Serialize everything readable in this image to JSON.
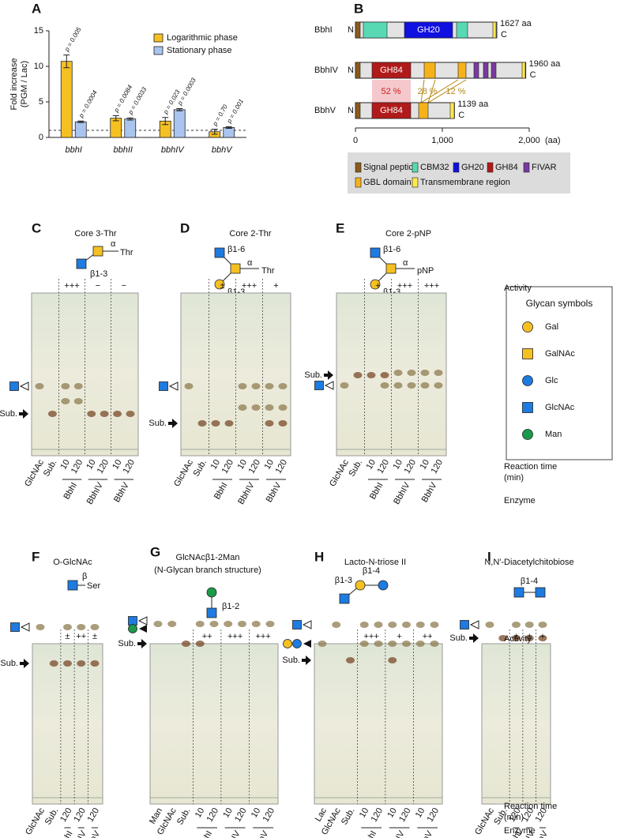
{
  "chart_data": {
    "type": "bar",
    "label": "A",
    "y_label": [
      "Fold increase",
      "(PGM / Lac)"
    ],
    "categories": [
      "bbhI",
      "bbhII",
      "bbhIV",
      "bbhV"
    ],
    "series": [
      {
        "name": "Logarithmic phase",
        "color": "#f5c022",
        "values": [
          10.7,
          2.7,
          2.3,
          0.8
        ],
        "errors": [
          0.9,
          0.35,
          0.5,
          0.35
        ],
        "p_values": [
          "p = 0.005",
          "p = 0.0084",
          "p = 0.023",
          "p = 0.70"
        ]
      },
      {
        "name": "Stationary phase",
        "color": "#a9c4ee",
        "values": [
          2.2,
          2.6,
          3.9,
          1.4
        ],
        "errors": [
          0.1,
          0.15,
          0.15,
          0.12
        ],
        "p_values": [
          "p = 0.0004",
          "p = 0.0033",
          "p = 0.0003",
          "p = 0.001"
        ]
      }
    ],
    "ylim": [
      0,
      15
    ],
    "yticks": [
      0,
      5,
      10,
      15
    ],
    "reference_line": 1
  },
  "domain_figure": {
    "label": "B",
    "n_term": "N",
    "c_term": "C",
    "proteins": [
      {
        "name": "BbhI",
        "length": 1627,
        "length_label": "1627 aa",
        "domain_labels": [
          "GH20"
        ]
      },
      {
        "name": "BbhIV",
        "length": 1960,
        "length_label": "1960 aa",
        "domain_labels": [
          "GH84"
        ]
      },
      {
        "name": "BbhV",
        "length": 1139,
        "length_label": "1139 aa",
        "domain_labels": [
          "GH84"
        ]
      }
    ],
    "identities": [
      "52 %",
      "28 %",
      "12 %"
    ],
    "scale": {
      "lim": [
        0,
        2000
      ],
      "ticks": [
        0,
        {
          "value": 1000,
          "label": "1,000"
        },
        {
          "value": 2000,
          "label": "2,000"
        }
      ],
      "unit": "(aa)"
    },
    "legend": [
      "Signal peptide",
      "CBM32",
      "GH20",
      "GH84",
      "FIVAR",
      "GBL domain",
      "Transmembrane region"
    ]
  },
  "tlc_panels": [
    {
      "label": "C",
      "title": [
        "Core 3-Thr"
      ],
      "glycan_labels": [
        "α",
        "Thr",
        "β1-3"
      ],
      "activity": [
        "+++",
        "−",
        "−"
      ],
      "lanes": [
        "GlcNAc",
        "Sub.",
        "10",
        "120",
        "10",
        "120",
        "10",
        "120"
      ],
      "enzymes": [
        "BbhI",
        "BbhIV",
        "BbhV"
      ],
      "substrate": "Sub."
    },
    {
      "label": "D",
      "title": [
        "Core 2-Thr"
      ],
      "glycan_labels": [
        "β1-6",
        "α",
        "Thr",
        "β1-3"
      ],
      "activity": [
        "±",
        "+++",
        "+"
      ],
      "lanes": [
        "GlcNAc",
        "Sub.",
        "10",
        "120",
        "10",
        "120",
        "10",
        "120"
      ],
      "enzymes": [
        "BbhI",
        "BbhIV",
        "BbhV"
      ],
      "substrate": "Sub."
    },
    {
      "label": "E",
      "title": [
        "Core 2-pNP"
      ],
      "glycan_labels": [
        "β1-6",
        "α",
        "pNP",
        "β1-3"
      ],
      "activity": [
        "+",
        "+++",
        "+++"
      ],
      "lanes": [
        "GlcNAc",
        "Sub.",
        "10",
        "120",
        "10",
        "120",
        "10",
        "120"
      ],
      "enzymes": [
        "BbhI",
        "BbhIV",
        "BbhV"
      ],
      "substrate": "Sub."
    },
    {
      "label": "F",
      "title": [
        "O-GlcNAc"
      ],
      "glycan_labels": [
        "β",
        "Ser"
      ],
      "activity": [
        "±",
        "++",
        "±"
      ],
      "lanes": [
        "GlcNAc",
        "Sub.",
        "120",
        "120",
        "120"
      ],
      "enzymes": [
        "BbhI",
        "BbhIV",
        "BbhV"
      ],
      "substrate": "Sub."
    },
    {
      "label": "G",
      "title": [
        "GlcNAcβ1-2Man",
        "(N-Glycan branch structure)"
      ],
      "glycan_labels": [
        "β1-2"
      ],
      "activity": [
        "++",
        "+++",
        "+++"
      ],
      "lanes": [
        "Man",
        "GlcNAc",
        "Sub.",
        "10",
        "120",
        "10",
        "120",
        "10",
        "120"
      ],
      "enzymes": [
        "BbhI",
        "BbhIV",
        "BbhV"
      ],
      "substrate": "Sub."
    },
    {
      "label": "H",
      "title": [
        "Lacto-N-triose II"
      ],
      "glycan_labels": [
        "β1-3",
        "β1-4"
      ],
      "activity": [
        "+++",
        "+",
        "++"
      ],
      "lanes": [
        "Lac",
        "GlcNAc",
        "Sub.",
        "10",
        "120",
        "10",
        "120",
        "10",
        "120"
      ],
      "enzymes": [
        "BbhI",
        "BbhIV",
        "BbhV"
      ],
      "substrate": "Sub."
    },
    {
      "label": "I",
      "title": [
        "N,N′-Diacetylchitobiose"
      ],
      "glycan_labels": [
        "β1-4"
      ],
      "activity": [
        "±",
        "±",
        "+"
      ],
      "lanes": [
        "GlcNAc",
        "Sub.",
        "120",
        "120",
        "120"
      ],
      "enzymes": [
        "BbhI",
        "BbhIV",
        "BbhV"
      ],
      "substrate": "Sub."
    }
  ],
  "row_labels": {
    "activity": "Activity",
    "reaction_time": [
      "Reaction time",
      "(min)"
    ],
    "enzyme": "Enzyme"
  },
  "glycan_legend": {
    "title": "Glycan symbols",
    "items": [
      "Gal",
      "GalNAc",
      "Glc",
      "GlcNAc",
      "Man"
    ]
  }
}
